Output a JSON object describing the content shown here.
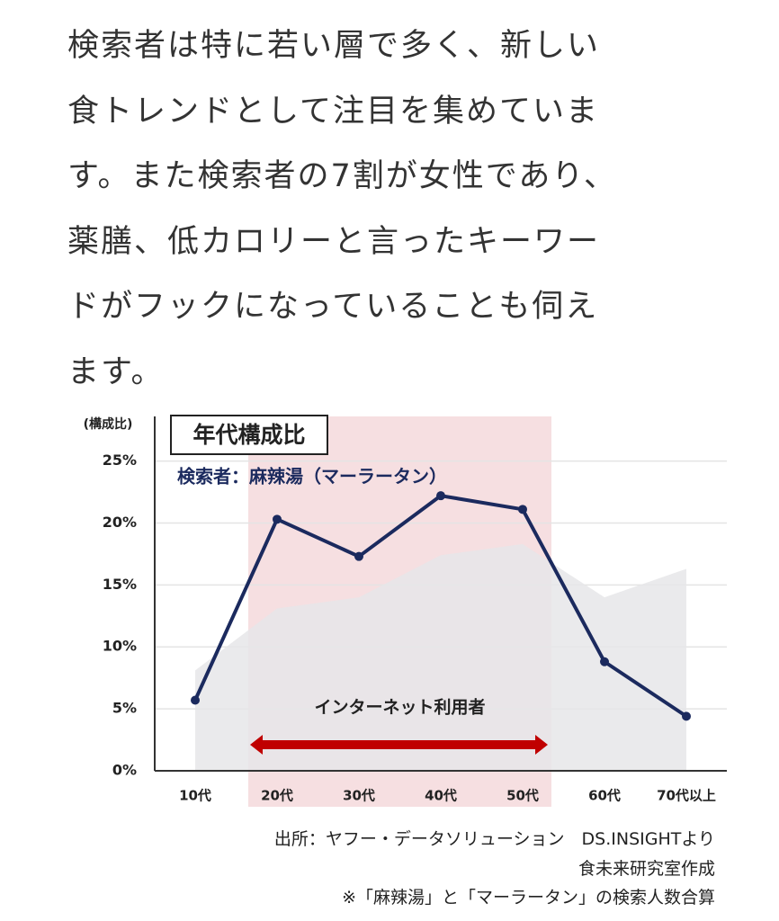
{
  "paragraph": [
    "検索者は特に若い層で多く、新しい",
    "食トレンドとして注目を集めていま",
    "す。また検索者の7割が女性であり、",
    "薬膳、低カロリーと言ったキーワー",
    "ドがフックになっていることも伺え",
    "ます。"
  ],
  "chart_data": {
    "type": "line",
    "title": "年代構成比",
    "subtitle": "検索者：麻辣湯（マーラータン）",
    "y_label": "(構成比)",
    "categories": [
      "10代",
      "20代",
      "30代",
      "40代",
      "50代",
      "60代",
      "70代以上"
    ],
    "series": [
      {
        "color": "#e6e6e9",
        "style": "area",
        "values": [
          8.1,
          13.1,
          14.0,
          17.4,
          18.3,
          14.0,
          16.3
        ]
      },
      {
        "name": "検索者：麻辣湯（マーラータン）",
        "color": "#1b2a5e",
        "values": [
          5.7,
          20.3,
          17.3,
          22.2,
          21.1,
          8.8,
          4.4
        ]
      }
    ],
    "highlight": {
      "from": "20代",
      "to": "50代",
      "color": "#f6dfe1",
      "label": "インターネット利用者",
      "arrow_color": "#c00000"
    },
    "ylim": [
      0,
      28.6
    ],
    "yticks": [
      {
        "value": 0,
        "label": "0%"
      },
      {
        "value": 5,
        "label": "5%"
      },
      {
        "value": 10,
        "label": "10%"
      },
      {
        "value": 15,
        "label": "15%"
      },
      {
        "value": 20,
        "label": "20%"
      },
      {
        "value": 25,
        "label": "25%"
      }
    ],
    "grid": true
  },
  "source": [
    "出所：ヤフー・データソリューション　DS.INSIGHTより",
    "食未来研究室作成",
    "※「麻辣湯」と「マーラータン」の検索人数合算"
  ]
}
